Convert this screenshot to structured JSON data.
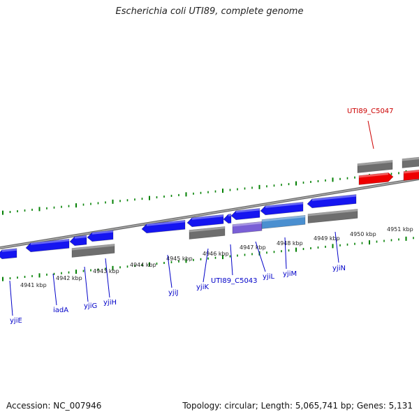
{
  "title": "Escherichia coli UTI89, complete genome",
  "footer": {
    "accession": "Accession: NC_007946",
    "topology": "Topology: circular; Length: 5,065,741 bp; Genes: 5,131"
  },
  "colors": {
    "backbone": "#808080",
    "tick": "#008000",
    "gene_forward": "#1515f0",
    "gene_reverse": "#1515f0",
    "gene_gray": "#6e6e6e",
    "gene_red": "#ee0000",
    "gene_purple": "#7a5fd6",
    "gene_teal": "#4a8fd0",
    "label_blue": "#0000c8",
    "label_red": "#cc0000"
  },
  "kbp_labels": [
    "4941 kbp",
    "4942 kbp",
    "4943 kbp",
    "4944 kbp",
    "4945 kbp",
    "4946 kbp",
    "4947 kbp",
    "4948 kbp",
    "4949 kbp",
    "4950 kbp",
    "4951 kbp"
  ],
  "gene_labels": [
    "yjiE",
    "iadA",
    "yjiG",
    "yjiH",
    "yjiJ",
    "yjiK",
    "UTI89_C5043",
    "yjiL",
    "yjiM",
    "yjiN",
    "UTI89_C5047"
  ]
}
